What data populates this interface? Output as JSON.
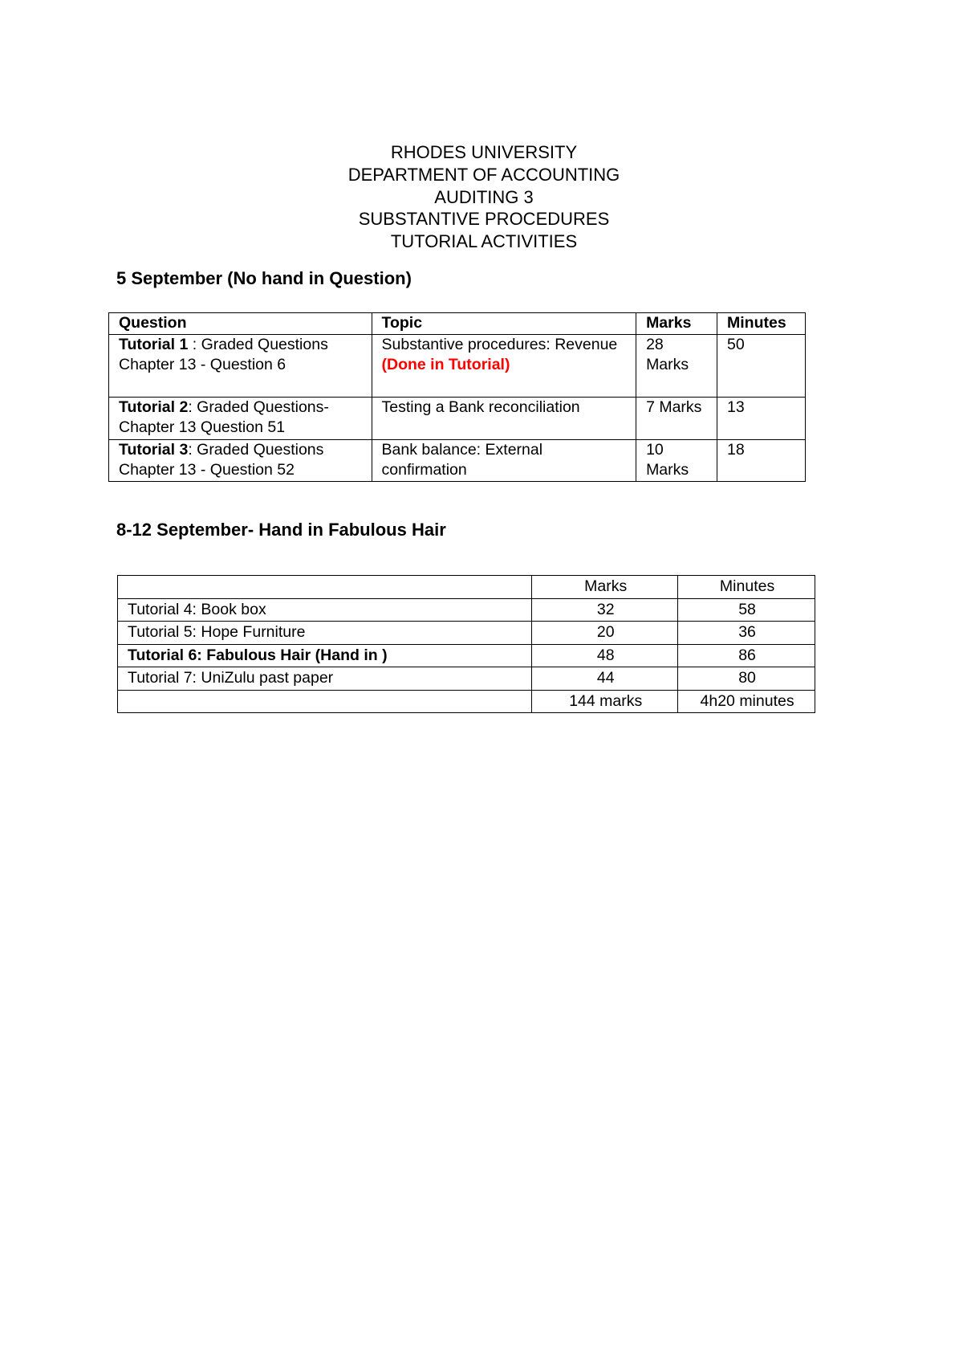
{
  "header": {
    "lines": [
      "RHODES UNIVERSITY",
      "DEPARTMENT OF ACCOUNTING",
      "AUDITING 3",
      "SUBSTANTIVE PROCEDURES",
      "TUTORIAL ACTIVITIES"
    ]
  },
  "section1": {
    "heading": "5  September (No hand in Question)",
    "columns": [
      "Question",
      "Topic",
      "Marks",
      "Minutes"
    ],
    "rows": [
      {
        "q_bold": " Tutorial 1",
        "q_rest": " : Graded Questions Chapter 13 - Question 6",
        "topic": "Substantive procedures: Revenue ",
        "topic_note": "(Done in Tutorial)",
        "marks": "28 Marks",
        "minutes": "50"
      },
      {
        "q_bold": "Tutorial 2",
        "q_rest": ": Graded Questions- Chapter 13 Question 51",
        "topic": "Testing a Bank reconciliation",
        "topic_note": "",
        "marks": "7 Marks",
        "minutes": "13"
      },
      {
        "q_bold": "Tutorial 3",
        "q_rest": ": Graded Questions Chapter 13 - Question 52",
        "topic": "Bank balance: External confirmation",
        "topic_note": "",
        "marks": "10 Marks",
        "minutes": "18"
      }
    ]
  },
  "section2": {
    "heading": "8-12 September- Hand in Fabulous Hair",
    "columns": [
      "",
      "Marks",
      "Minutes"
    ],
    "rows": [
      {
        "name": "Tutorial 4: Book box",
        "marks": "32",
        "minutes": "58"
      },
      {
        "name": "Tutorial 5: Hope Furniture",
        "marks": "20",
        "minutes": "36"
      },
      {
        "name": "Tutorial 6: Fabulous Hair (Hand in )",
        "marks": "48",
        "minutes": "86",
        "bold": true
      },
      {
        "name": "Tutorial 7: UniZulu past paper",
        "marks": "44",
        "minutes": "80"
      }
    ],
    "total": {
      "name": "",
      "marks": "144 marks",
      "minutes": "4h20 minutes"
    }
  },
  "colors": {
    "note": "#ff0000"
  }
}
